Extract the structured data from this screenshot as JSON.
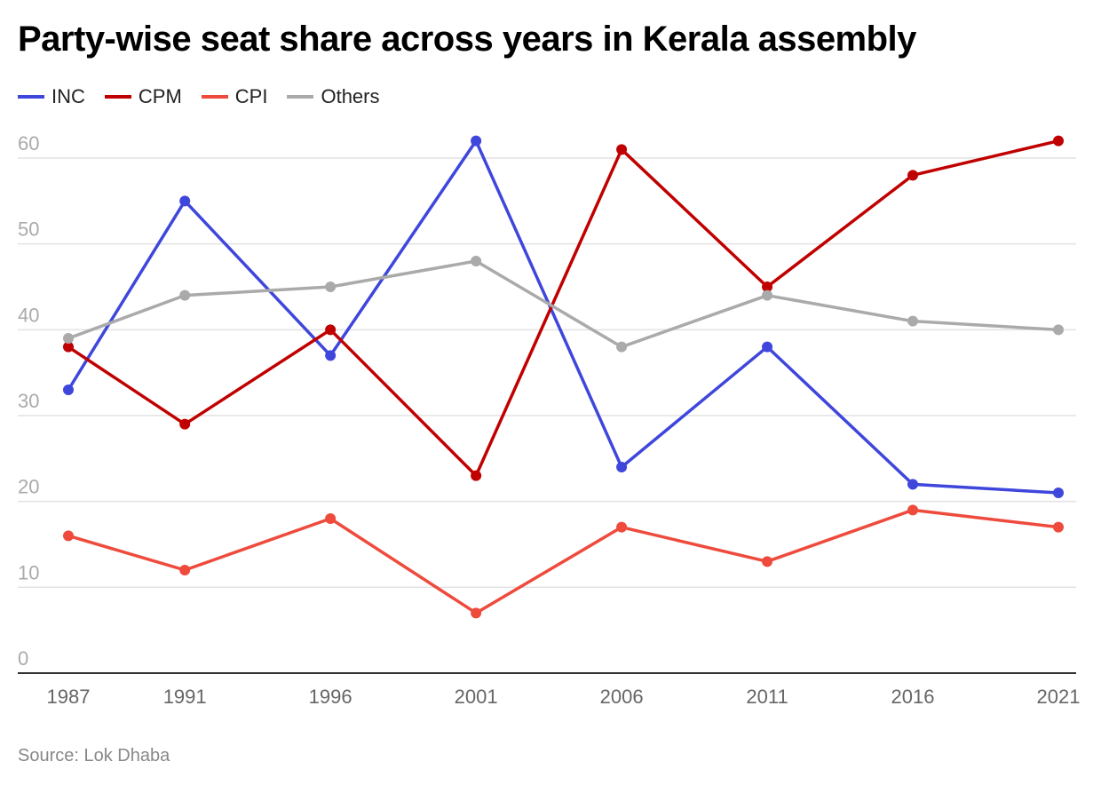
{
  "chart_data": {
    "type": "line",
    "title": "Party-wise seat share across years in Kerala assembly",
    "source": "Source: Lok Dhaba",
    "x": [
      1987,
      1991,
      1996,
      2001,
      2006,
      2011,
      2016,
      2021
    ],
    "x_tick_labels": [
      "1987",
      "1991",
      "1996",
      "2001",
      "2006",
      "2011",
      "2016",
      "2021"
    ],
    "y_ticks": [
      0,
      10,
      20,
      30,
      40,
      50,
      60
    ],
    "ylim": [
      0,
      62
    ],
    "grid": true,
    "legend_placement": "top-left",
    "series": [
      {
        "name": "INC",
        "color": "#3f46dc",
        "values": [
          33,
          55,
          37,
          62,
          24,
          38,
          22,
          21
        ]
      },
      {
        "name": "CPM",
        "color": "#c00000",
        "values": [
          38,
          29,
          40,
          23,
          61,
          45,
          58,
          62
        ]
      },
      {
        "name": "CPI",
        "color": "#ee4b3d",
        "values": [
          16,
          12,
          18,
          7,
          17,
          13,
          19,
          17
        ]
      },
      {
        "name": "Others",
        "color": "#aaaaaa",
        "values": [
          39,
          44,
          45,
          48,
          38,
          44,
          41,
          40
        ]
      }
    ]
  }
}
